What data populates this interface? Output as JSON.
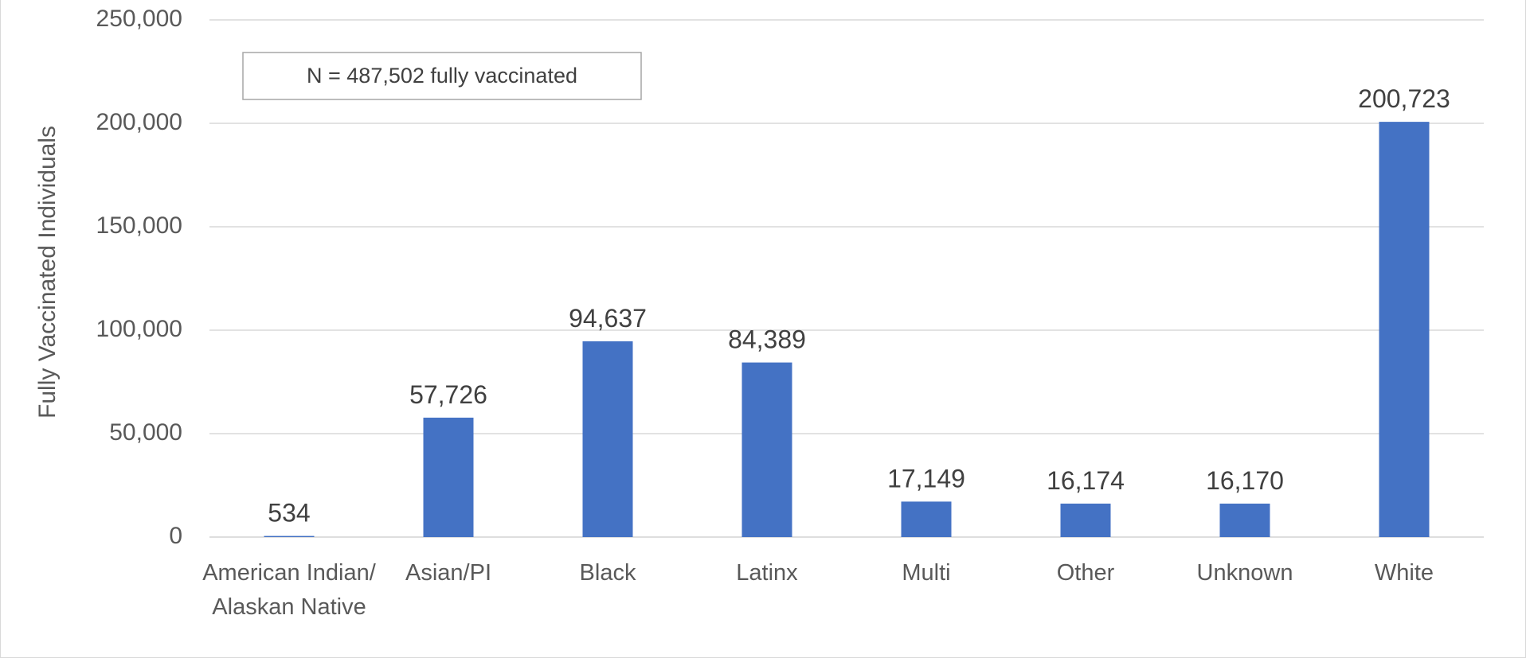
{
  "chart_data": {
    "type": "bar",
    "categories": [
      [
        "American Indian/",
        "Alaskan Native"
      ],
      [
        "Asian/PI"
      ],
      [
        "Black"
      ],
      [
        "Latinx"
      ],
      [
        "Multi"
      ],
      [
        "Other"
      ],
      [
        "Unknown"
      ],
      [
        "White"
      ]
    ],
    "values": [
      534,
      57726,
      94637,
      84389,
      17149,
      16174,
      16170,
      200723
    ],
    "data_labels": [
      "534",
      "57,726",
      "94,637",
      "84,389",
      "17,149",
      "16,174",
      "16,170",
      "200,723"
    ],
    "ylabel": "Fully Vaccinated Individuals",
    "ylim": [
      0,
      250000
    ],
    "yticks": [
      0,
      50000,
      100000,
      150000,
      200000,
      250000
    ],
    "ytick_labels": [
      "0",
      "50,000",
      "100,000",
      "150,000",
      "200,000",
      "250,000"
    ],
    "annotation": "N = 487,502 fully vaccinated",
    "grid": true,
    "legend": "none",
    "bar_color": "#4472c4",
    "grid_color": "#d9d9d9"
  }
}
